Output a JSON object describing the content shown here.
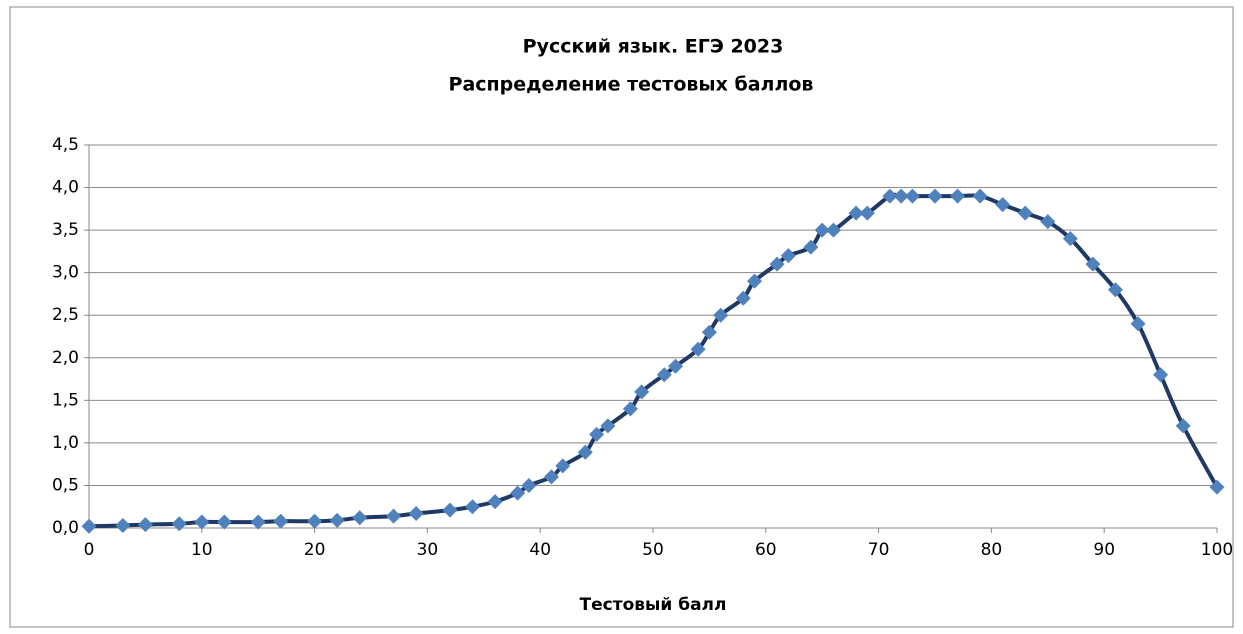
{
  "chart_data": {
    "type": "line",
    "title": "Русский язык. ЕГЭ 2023",
    "subtitle": "Распределение тестовых баллов",
    "x_label": "Тестовый балл",
    "x": [
      0,
      3,
      5,
      8,
      10,
      12,
      15,
      17,
      20,
      22,
      24,
      27,
      29,
      32,
      34,
      36,
      38,
      39,
      41,
      42,
      44,
      45,
      46,
      48,
      49,
      51,
      52,
      54,
      55,
      56,
      58,
      59,
      61,
      62,
      64,
      65,
      66,
      68,
      69,
      71,
      72,
      73,
      75,
      77,
      79,
      81,
      83,
      85,
      87,
      89,
      91,
      93,
      95,
      97,
      100
    ],
    "values": [
      0.02,
      0.03,
      0.04,
      0.05,
      0.07,
      0.07,
      0.07,
      0.08,
      0.08,
      0.09,
      0.12,
      0.14,
      0.17,
      0.21,
      0.25,
      0.31,
      0.41,
      0.5,
      0.6,
      0.73,
      0.89,
      1.1,
      1.2,
      1.4,
      1.6,
      1.8,
      1.9,
      2.1,
      2.3,
      2.5,
      2.7,
      2.9,
      3.1,
      3.2,
      3.3,
      3.5,
      3.5,
      3.7,
      3.7,
      3.9,
      3.9,
      3.9,
      3.9,
      3.9,
      3.9,
      3.8,
      3.7,
      3.6,
      3.4,
      3.1,
      2.8,
      2.4,
      1.8,
      1.2,
      0.48
    ],
    "color": "#1f3864",
    "marker_color": "#4f81bd",
    "smooth": true,
    "xlim": [
      0,
      100
    ],
    "xticks": [
      0,
      10,
      20,
      30,
      40,
      50,
      60,
      70,
      80,
      90,
      100
    ],
    "ylim": [
      0,
      4.5
    ],
    "yticks": [
      {
        "value": 0,
        "label": "0,0"
      },
      {
        "value": 0.5,
        "label": "0,5"
      },
      {
        "value": 1,
        "label": "1,0"
      },
      {
        "value": 1.5,
        "label": "1,5"
      },
      {
        "value": 2,
        "label": "2,0"
      },
      {
        "value": 2.5,
        "label": "2,5"
      },
      {
        "value": 3,
        "label": "3,0"
      },
      {
        "value": 3.5,
        "label": "3,5"
      },
      {
        "value": 4,
        "label": "4,0"
      },
      {
        "value": 4.5,
        "label": "4,5"
      }
    ],
    "grid": true
  }
}
